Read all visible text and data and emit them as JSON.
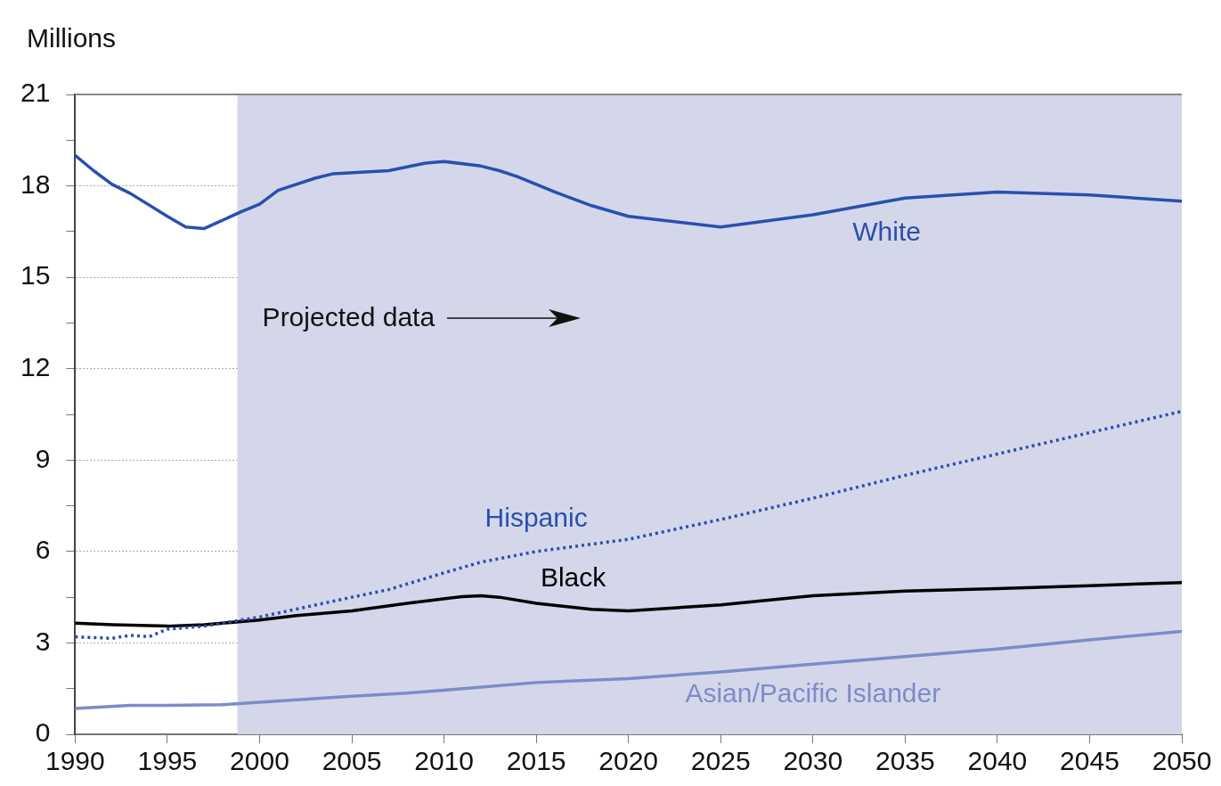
{
  "chart_data": {
    "type": "line",
    "ylabel": "Millions",
    "xlim": [
      1990,
      2050
    ],
    "ylim": [
      0,
      21
    ],
    "xticks": [
      1990,
      1995,
      2000,
      2005,
      2010,
      2015,
      2020,
      2025,
      2030,
      2035,
      2040,
      2045,
      2050
    ],
    "yticks": [
      0,
      {
        "value": 1.5,
        "label": null
      },
      3,
      {
        "value": 4.5,
        "label": null
      },
      6,
      {
        "value": 7.5,
        "label": null
      },
      9,
      {
        "value": 10.5,
        "label": null
      },
      12,
      {
        "value": 13.5,
        "label": null
      },
      15,
      {
        "value": 16.5,
        "label": null
      },
      18,
      {
        "value": 19.5,
        "label": null
      },
      21
    ],
    "grid": "y",
    "legend": false,
    "marker": "none",
    "bands": [
      {
        "axis": "x",
        "from": 1998.8,
        "to": 2050,
        "label": "Projected data",
        "color": "#d4d7ea"
      }
    ],
    "series": [
      {
        "name": "White",
        "color": "#2a4fad",
        "line_style": "solid",
        "x": [
          1990,
          1991,
          1992,
          1993,
          1995,
          1996,
          1997,
          1999,
          2000,
          2001,
          2003,
          2004,
          2007,
          2009,
          2010,
          2012,
          2013,
          2014,
          2016,
          2018,
          2020,
          2025,
          2030,
          2035,
          2040,
          2045,
          2050
        ],
        "values": [
          19.0,
          18.5,
          18.05,
          17.75,
          17.0,
          16.65,
          16.6,
          17.15,
          17.4,
          17.85,
          18.25,
          18.4,
          18.5,
          18.75,
          18.8,
          18.65,
          18.5,
          18.3,
          17.8,
          17.35,
          17.0,
          16.65,
          17.05,
          17.6,
          17.8,
          17.7,
          17.5
        ]
      },
      {
        "name": "Hispanic",
        "color": "#2a4fad",
        "line_style": "dotted",
        "x": [
          1990,
          1992,
          1993,
          1994,
          1995,
          1997,
          2000,
          2005,
          2007,
          2010,
          2012,
          2015,
          2020,
          2025,
          2030,
          2035,
          2040,
          2045,
          2050
        ],
        "values": [
          3.2,
          3.15,
          3.25,
          3.2,
          3.45,
          3.55,
          3.85,
          4.5,
          4.75,
          5.3,
          5.65,
          6.0,
          6.4,
          7.05,
          7.75,
          8.5,
          9.2,
          9.9,
          10.6
        ]
      },
      {
        "name": "Black",
        "color": "#000000",
        "line_style": "solid",
        "x": [
          1990,
          1992,
          1995,
          1997,
          2000,
          2002,
          2005,
          2008,
          2011,
          2012,
          2013,
          2015,
          2018,
          2020,
          2025,
          2030,
          2035,
          2040,
          2045,
          2050
        ],
        "values": [
          3.65,
          3.6,
          3.55,
          3.6,
          3.75,
          3.9,
          4.05,
          4.3,
          4.52,
          4.55,
          4.5,
          4.3,
          4.1,
          4.05,
          4.25,
          4.55,
          4.7,
          4.78,
          4.88,
          4.98
        ]
      },
      {
        "name": "Asian/Pacific Islander",
        "color": "#7b8cc9",
        "line_style": "solid",
        "x": [
          1990,
          1993,
          1995,
          1998,
          2000,
          2005,
          2008,
          2010,
          2015,
          2020,
          2025,
          2030,
          2035,
          2040,
          2045,
          2050
        ],
        "values": [
          0.85,
          0.95,
          0.95,
          0.97,
          1.05,
          1.25,
          1.35,
          1.45,
          1.7,
          1.83,
          2.05,
          2.3,
          2.55,
          2.8,
          3.1,
          3.38
        ]
      }
    ]
  }
}
